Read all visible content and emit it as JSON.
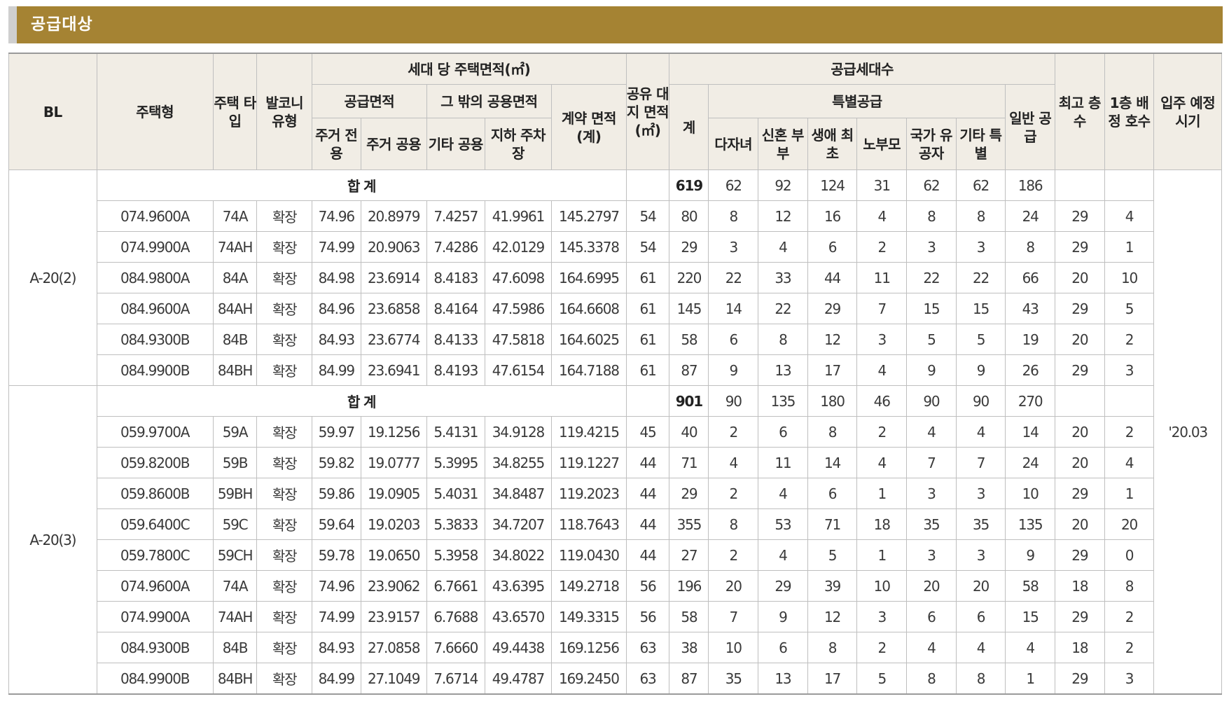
{
  "title": "공급대상",
  "headers": {
    "bl": "BL",
    "housing_type": "주택형",
    "house_type": "주택\n타입",
    "balcony": "발코니\n유형",
    "area_per_unit": "세대 당 주택면적(㎡)",
    "supply_area": "공급면적",
    "other_common": "그 밖의 공용면적",
    "contract_area": "계약\n면적\n(계)",
    "exclusive": "주거\n전용",
    "residential_common": "주거\n공용",
    "other_shared": "기타\n공용",
    "underground_parking": "지하\n주차장",
    "land_area": "공유\n대지\n면적\n(㎡)",
    "supply_units": "공급세대수",
    "total": "계",
    "special_supply": "특별공급",
    "multi_child": "다자녀",
    "newlywed": "신혼\n부부",
    "first_time": "생애\n최초",
    "elderly_parents": "노부모",
    "veterans": "국가\n유공자",
    "other_special": "기타\n특별",
    "general_supply": "일반\n공급",
    "max_floors": "최고\n층수",
    "first_floor_units": "1층\n배정\n호수",
    "move_in": "입주\n예정\n시기"
  },
  "move_in_date": "'20.03",
  "blocks": [
    {
      "bl": "A-20(2)",
      "summary": {
        "label": "합 계",
        "total": "619",
        "multi_child": "62",
        "newlywed": "92",
        "first_time": "124",
        "elderly": "31",
        "veterans": "62",
        "other": "62",
        "general": "186"
      },
      "rows": [
        [
          "074.9600A",
          "74A",
          "확장",
          "74.96",
          "20.8979",
          "7.4257",
          "41.9961",
          "145.2797",
          "54",
          "80",
          "8",
          "12",
          "16",
          "4",
          "8",
          "8",
          "24",
          "29",
          "4"
        ],
        [
          "074.9900A",
          "74AH",
          "확장",
          "74.99",
          "20.9063",
          "7.4286",
          "42.0129",
          "145.3378",
          "54",
          "29",
          "3",
          "4",
          "6",
          "2",
          "3",
          "3",
          "8",
          "29",
          "1"
        ],
        [
          "084.9800A",
          "84A",
          "확장",
          "84.98",
          "23.6914",
          "8.4183",
          "47.6098",
          "164.6995",
          "61",
          "220",
          "22",
          "33",
          "44",
          "11",
          "22",
          "22",
          "66",
          "20",
          "10"
        ],
        [
          "084.9600A",
          "84AH",
          "확장",
          "84.96",
          "23.6858",
          "8.4164",
          "47.5986",
          "164.6608",
          "61",
          "145",
          "14",
          "22",
          "29",
          "7",
          "15",
          "15",
          "43",
          "29",
          "5"
        ],
        [
          "084.9300B",
          "84B",
          "확장",
          "84.93",
          "23.6774",
          "8.4133",
          "47.5818",
          "164.6025",
          "61",
          "58",
          "6",
          "8",
          "12",
          "3",
          "5",
          "5",
          "19",
          "20",
          "2"
        ],
        [
          "084.9900B",
          "84BH",
          "확장",
          "84.99",
          "23.6941",
          "8.4193",
          "47.6154",
          "164.7188",
          "61",
          "87",
          "9",
          "13",
          "17",
          "4",
          "9",
          "9",
          "26",
          "29",
          "3"
        ]
      ]
    },
    {
      "bl": "A-20(3)",
      "summary": {
        "label": "합 계",
        "total": "901",
        "multi_child": "90",
        "newlywed": "135",
        "first_time": "180",
        "elderly": "46",
        "veterans": "90",
        "other": "90",
        "general": "270"
      },
      "rows": [
        [
          "059.9700A",
          "59A",
          "확장",
          "59.97",
          "19.1256",
          "5.4131",
          "34.9128",
          "119.4215",
          "45",
          "40",
          "2",
          "6",
          "8",
          "2",
          "4",
          "4",
          "14",
          "20",
          "2"
        ],
        [
          "059.8200B",
          "59B",
          "확장",
          "59.82",
          "19.0777",
          "5.3995",
          "34.8255",
          "119.1227",
          "44",
          "71",
          "4",
          "11",
          "14",
          "4",
          "7",
          "7",
          "24",
          "20",
          "4"
        ],
        [
          "059.8600B",
          "59BH",
          "확장",
          "59.86",
          "19.0905",
          "5.4031",
          "34.8487",
          "119.2023",
          "44",
          "29",
          "2",
          "4",
          "6",
          "1",
          "3",
          "3",
          "10",
          "29",
          "1"
        ],
        [
          "059.6400C",
          "59C",
          "확장",
          "59.64",
          "19.0203",
          "5.3833",
          "34.7207",
          "118.7643",
          "44",
          "355",
          "8",
          "53",
          "71",
          "18",
          "35",
          "35",
          "135",
          "20",
          "20"
        ],
        [
          "059.7800C",
          "59CH",
          "확장",
          "59.78",
          "19.0650",
          "5.3958",
          "34.8022",
          "119.0430",
          "44",
          "27",
          "2",
          "4",
          "5",
          "1",
          "3",
          "3",
          "9",
          "29",
          "0"
        ],
        [
          "074.9600A",
          "74A",
          "확장",
          "74.96",
          "23.9062",
          "6.7661",
          "43.6395",
          "149.2718",
          "56",
          "196",
          "20",
          "29",
          "39",
          "10",
          "20",
          "20",
          "58",
          "18",
          "8"
        ],
        [
          "074.9900A",
          "74AH",
          "확장",
          "74.99",
          "23.9157",
          "6.7688",
          "43.6570",
          "149.3315",
          "56",
          "58",
          "7",
          "9",
          "12",
          "3",
          "6",
          "6",
          "15",
          "29",
          "2"
        ],
        [
          "084.9300B",
          "84B",
          "확장",
          "84.93",
          "27.0858",
          "7.6660",
          "49.4438",
          "169.1256",
          "63",
          "38",
          "10",
          "6",
          "8",
          "2",
          "4",
          "4",
          "4",
          "18",
          "2"
        ],
        [
          "084.9900B",
          "84BH",
          "확장",
          "84.99",
          "27.1049",
          "7.6714",
          "49.4787",
          "169.2450",
          "63",
          "87",
          "35",
          "13",
          "17",
          "5",
          "8",
          "8",
          "1",
          "29",
          "3"
        ]
      ]
    }
  ]
}
